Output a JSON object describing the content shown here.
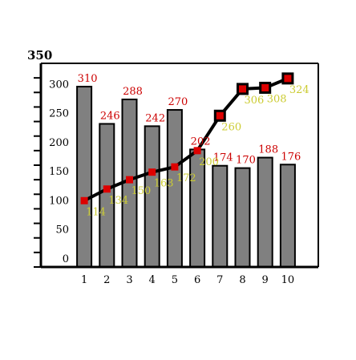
{
  "chart_data": {
    "type": "bar",
    "top_label": "350",
    "ylim": [
      0,
      350
    ],
    "yticks": [
      "0",
      "50",
      "100",
      "150",
      "200",
      "250",
      "300"
    ],
    "categories": [
      "1",
      "2",
      "3",
      "4",
      "5",
      "6",
      "7",
      "8",
      "9",
      "10"
    ],
    "series": [
      {
        "kind": "bar",
        "values": [
          310,
          246,
          288,
          242,
          270,
          202,
          174,
          170,
          188,
          176
        ],
        "color": "#808080",
        "label_color": "#cc0000"
      },
      {
        "kind": "line",
        "values": [
          114,
          134,
          150,
          163,
          172,
          200,
          260,
          306,
          308,
          324
        ],
        "color": "#000000",
        "marker_color": "#dd0000",
        "label_color": "#cccc33"
      }
    ],
    "grid": false,
    "legend": "none"
  }
}
